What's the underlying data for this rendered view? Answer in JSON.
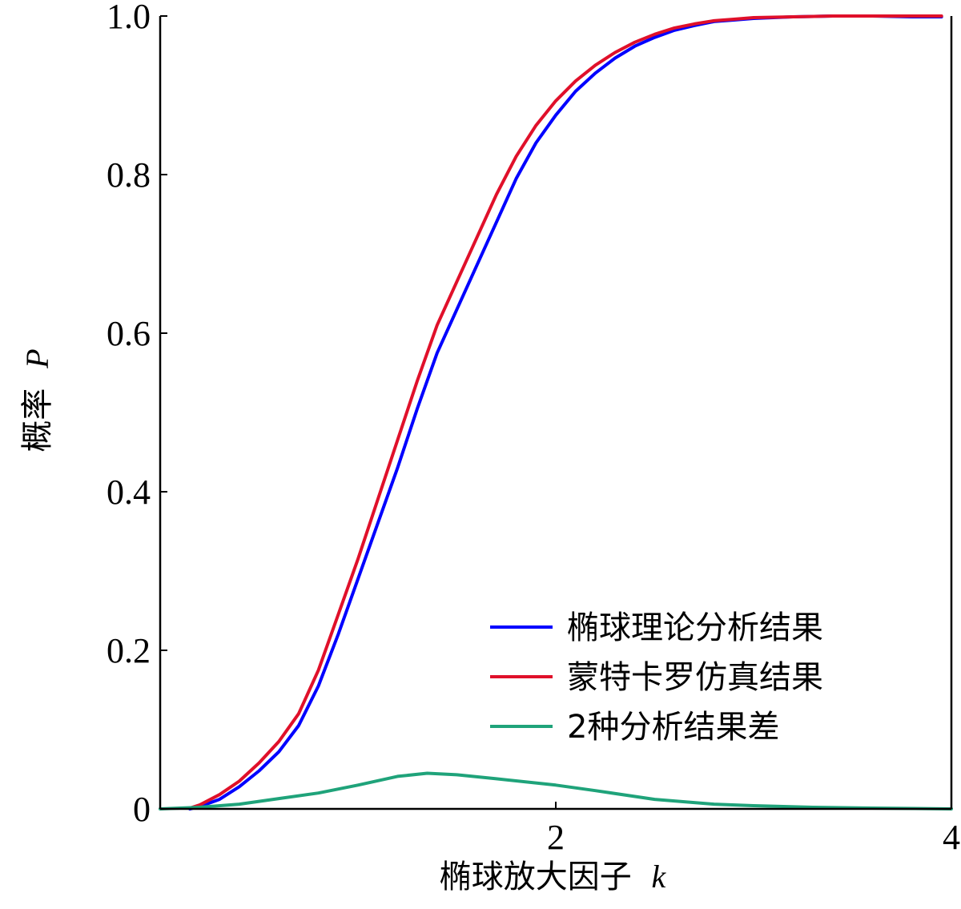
{
  "chart_data": {
    "type": "line",
    "title": "",
    "xlabel": "椭球放大因子",
    "xlabel_var": "k",
    "ylabel": "概率",
    "ylabel_var": "P",
    "xlim": [
      0,
      4
    ],
    "ylim": [
      0,
      1.0
    ],
    "xticks": [
      {
        "value": 2,
        "label": "2"
      },
      {
        "value": 4,
        "label": "4"
      }
    ],
    "yticks": [
      {
        "value": 0,
        "label": "0"
      },
      {
        "value": 0.2,
        "label": "0.2"
      },
      {
        "value": 0.4,
        "label": "0.4"
      },
      {
        "value": 0.6,
        "label": "0.6"
      },
      {
        "value": 0.8,
        "label": "0.8"
      },
      {
        "value": 1.0,
        "label": "1.0"
      }
    ],
    "grid": false,
    "legend_position": "lower-right",
    "series": [
      {
        "name": "椭球理论分析结果",
        "color": "#0000ff",
        "x": [
          0.15,
          0.2,
          0.3,
          0.4,
          0.5,
          0.6,
          0.7,
          0.8,
          0.9,
          1.0,
          1.1,
          1.2,
          1.3,
          1.4,
          1.5,
          1.6,
          1.7,
          1.8,
          1.9,
          2.0,
          2.1,
          2.2,
          2.3,
          2.4,
          2.5,
          2.6,
          2.7,
          2.8,
          2.9,
          3.0,
          3.2,
          3.4,
          3.6,
          3.8,
          3.95
        ],
        "y": [
          0.0,
          0.003,
          0.012,
          0.028,
          0.048,
          0.072,
          0.105,
          0.155,
          0.22,
          0.29,
          0.36,
          0.43,
          0.505,
          0.575,
          0.63,
          0.685,
          0.74,
          0.795,
          0.84,
          0.875,
          0.905,
          0.928,
          0.947,
          0.962,
          0.973,
          0.982,
          0.988,
          0.993,
          0.995,
          0.997,
          0.999,
          1.0,
          1.0,
          0.999,
          0.999
        ]
      },
      {
        "name": "蒙特卡罗仿真结果",
        "color": "#e0102a",
        "x": [
          0.15,
          0.2,
          0.3,
          0.4,
          0.5,
          0.6,
          0.7,
          0.8,
          0.9,
          1.0,
          1.1,
          1.2,
          1.3,
          1.4,
          1.5,
          1.6,
          1.7,
          1.8,
          1.9,
          2.0,
          2.1,
          2.2,
          2.3,
          2.4,
          2.5,
          2.6,
          2.7,
          2.8,
          2.9,
          3.0,
          3.2,
          3.4,
          3.6,
          3.8,
          3.95
        ],
        "y": [
          0.001,
          0.005,
          0.018,
          0.035,
          0.058,
          0.085,
          0.12,
          0.175,
          0.245,
          0.315,
          0.39,
          0.465,
          0.54,
          0.61,
          0.665,
          0.72,
          0.775,
          0.823,
          0.862,
          0.893,
          0.918,
          0.938,
          0.954,
          0.967,
          0.977,
          0.985,
          0.99,
          0.994,
          0.996,
          0.998,
          0.999,
          1.0,
          1.0,
          1.0,
          1.0
        ]
      },
      {
        "name": "2种分析结果差",
        "color": "#1fa37a",
        "x": [
          0.0,
          0.2,
          0.4,
          0.6,
          0.8,
          1.0,
          1.2,
          1.35,
          1.5,
          1.7,
          2.0,
          2.2,
          2.5,
          2.8,
          3.0,
          3.3,
          3.6,
          4.0
        ],
        "y": [
          0.0,
          0.002,
          0.006,
          0.013,
          0.02,
          0.03,
          0.041,
          0.045,
          0.043,
          0.038,
          0.03,
          0.023,
          0.012,
          0.006,
          0.004,
          0.002,
          0.001,
          0.0
        ]
      }
    ]
  }
}
